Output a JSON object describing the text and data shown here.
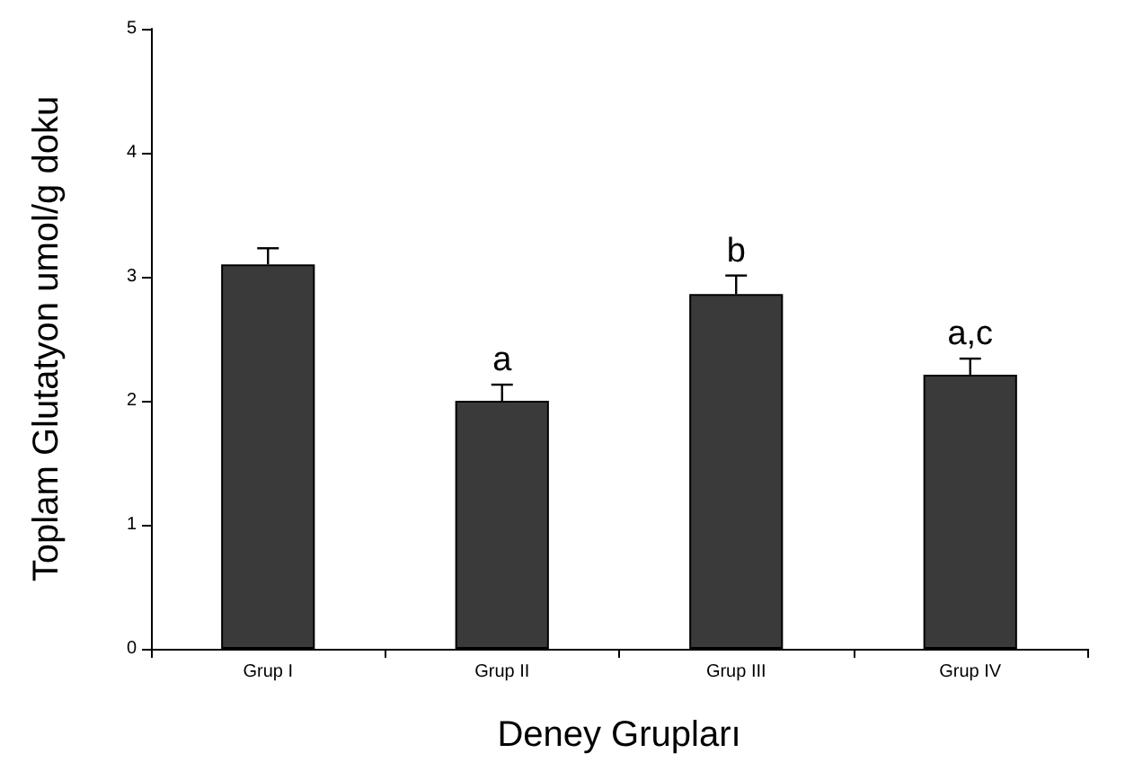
{
  "chart_data": {
    "type": "bar",
    "xlabel": "Deney Grupları",
    "ylabel": "Toplam Glutatyon umol/g doku",
    "categories": [
      "Grup I",
      "Grup II",
      "Grup III",
      "Grup IV"
    ],
    "values": [
      3.1,
      2.0,
      2.86,
      2.21
    ],
    "errors": [
      [
        3.1,
        3.23
      ],
      [
        2.0,
        2.13
      ],
      [
        2.86,
        3.01
      ],
      [
        2.21,
        2.34
      ]
    ],
    "value_labels": [
      null,
      "a",
      "b",
      "a,c"
    ],
    "color": "#3a3a3a",
    "ylim": [
      0,
      5
    ],
    "yticks": [
      0,
      1,
      2,
      3,
      4,
      5
    ],
    "grid": false
  }
}
